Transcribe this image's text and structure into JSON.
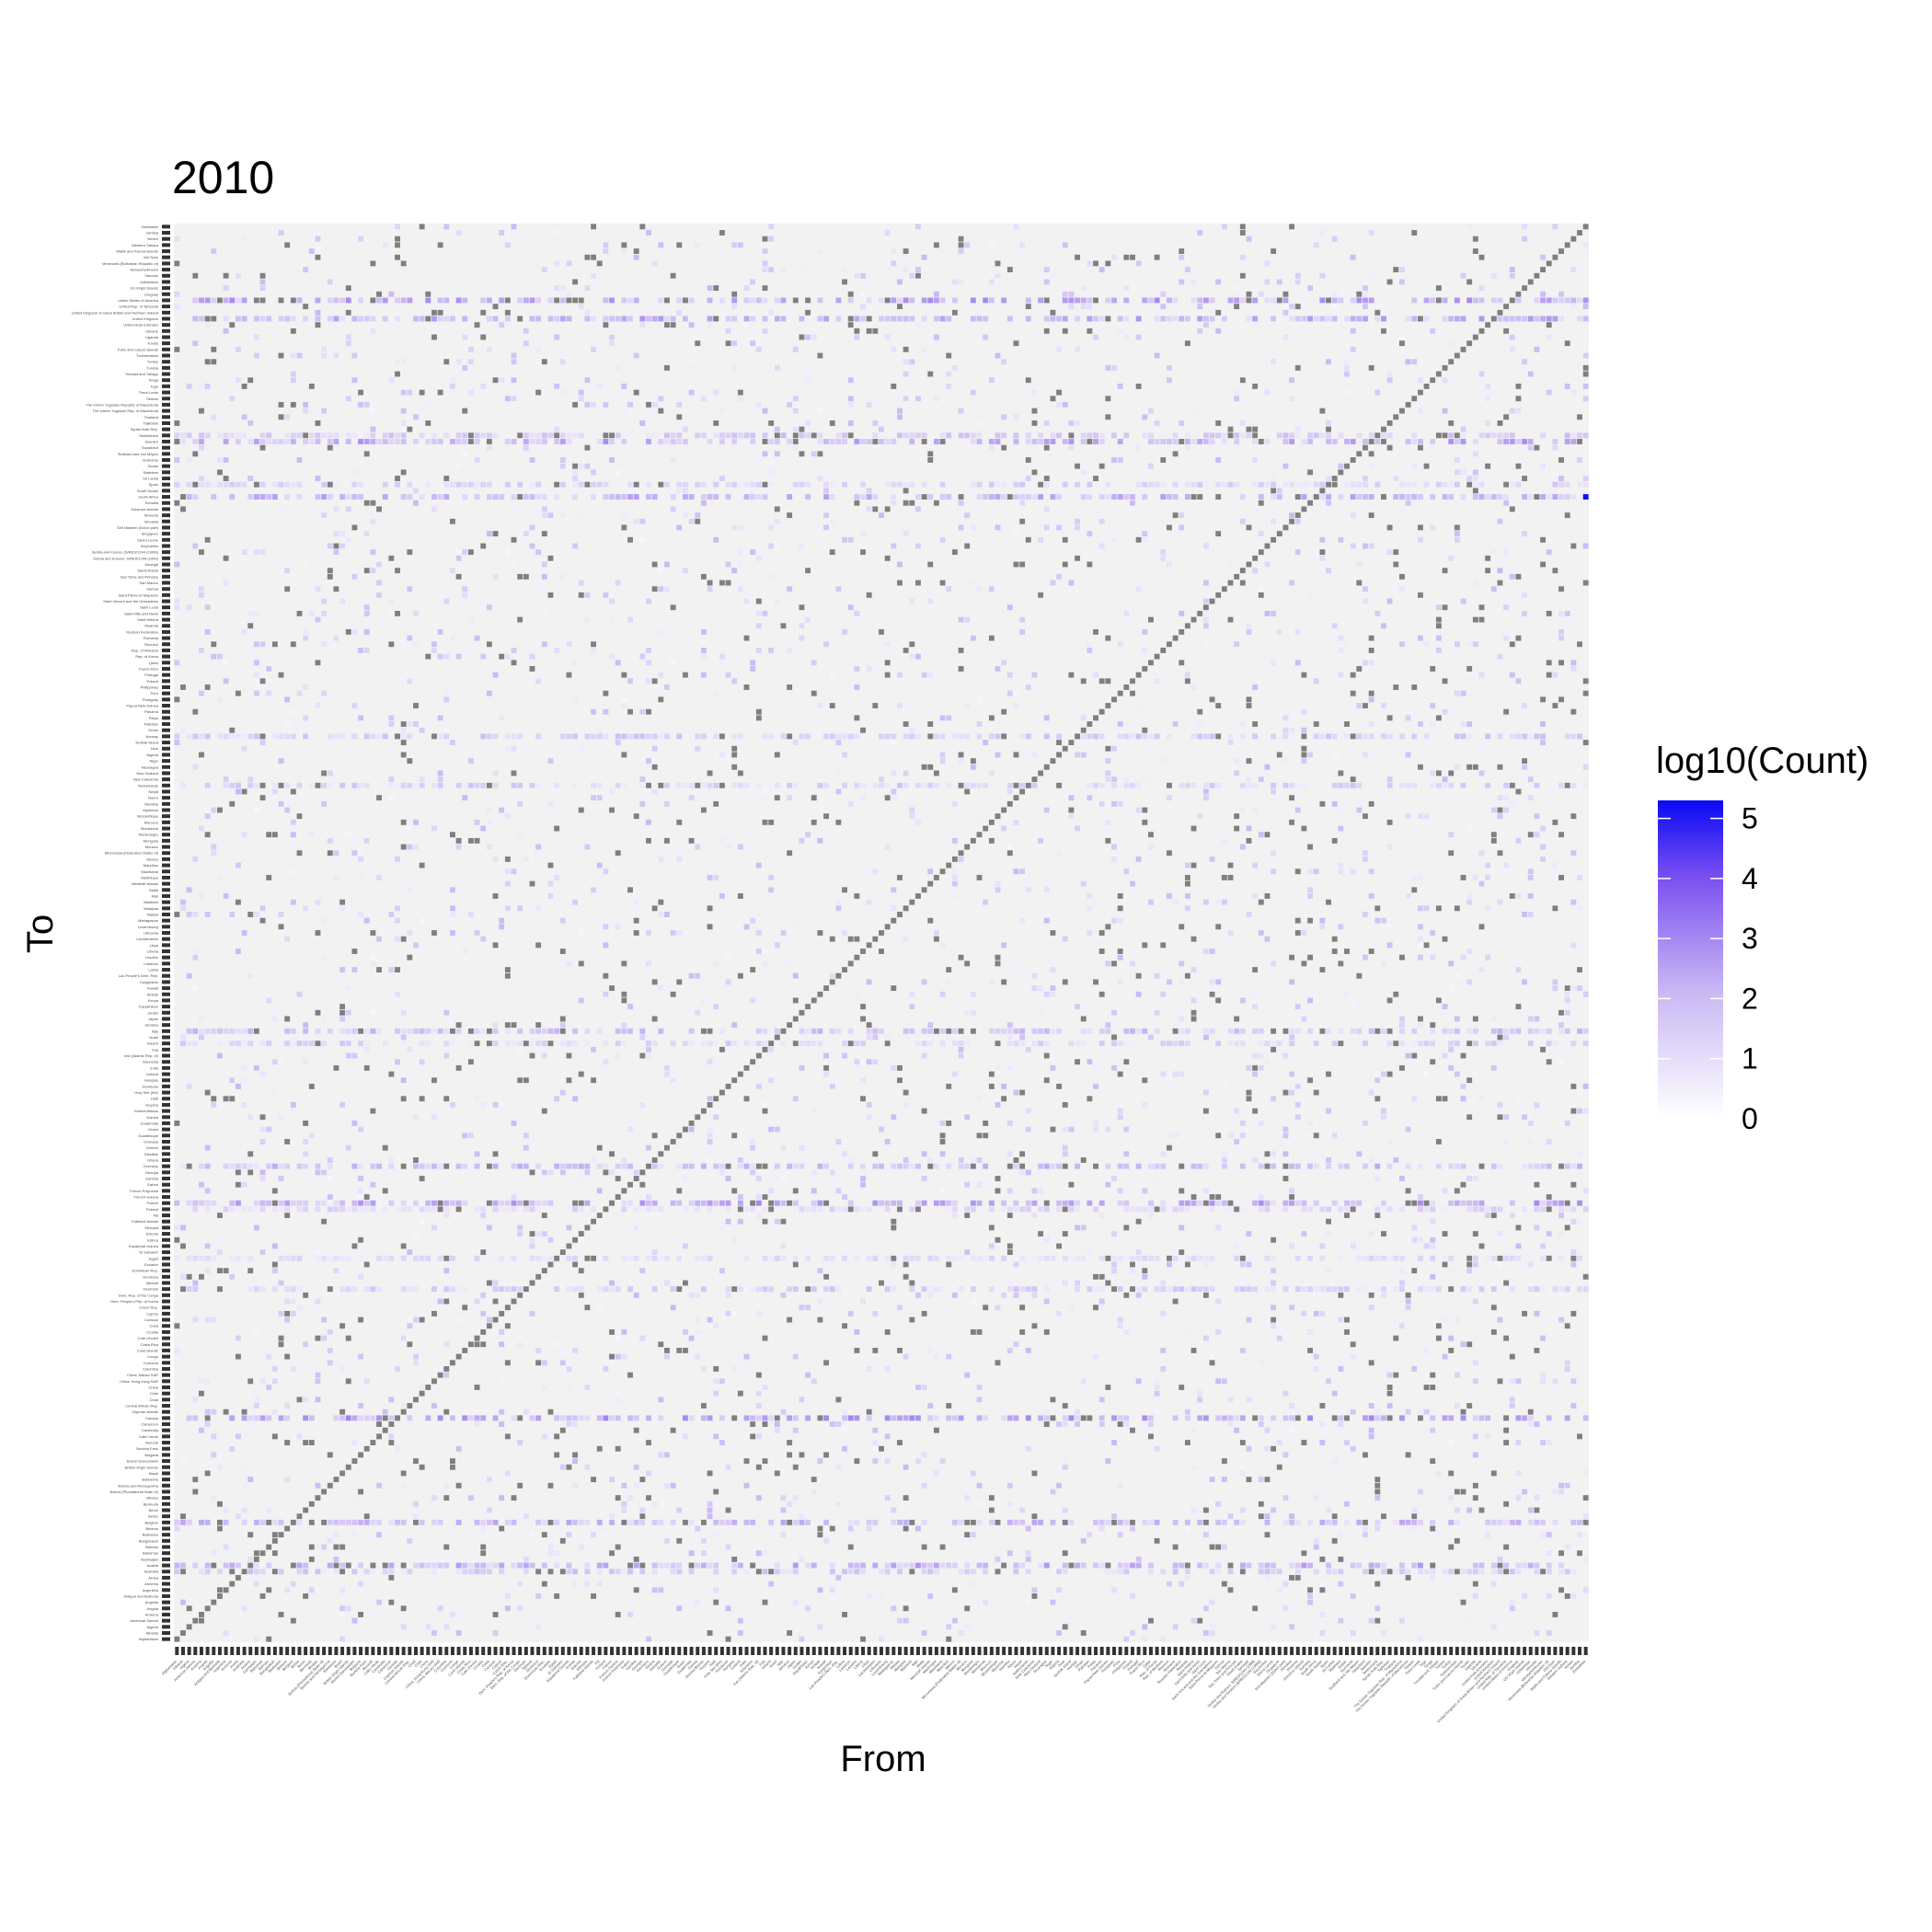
{
  "chart_data": {
    "type": "heatmap",
    "title": "2010",
    "xlabel": "From",
    "ylabel": "To",
    "legend": {
      "title": "log10(Count)",
      "ticks": [
        "0",
        "1",
        "2",
        "3",
        "4",
        "5"
      ],
      "range": [
        0,
        5.3
      ],
      "low_color": "#ffffff",
      "high_color": "#0000ff",
      "na_color": "#7f7f7f",
      "empty_color": "#f2f2f2",
      "placement": "right"
    },
    "countries": [
      "Afghanistan",
      "Albania",
      "Algeria",
      "American Samoa",
      "Andorra",
      "Angola",
      "Anguilla",
      "Antigua and Barbuda",
      "Argentina",
      "Armenia",
      "Aruba",
      "Australia",
      "Austria",
      "Azerbaijan",
      "Bahamas",
      "Bahrain",
      "Bangladesh",
      "Barbados",
      "Belarus",
      "Belgium",
      "Belize",
      "Benin",
      "Bermuda",
      "Bhutan",
      "Bolivia (Plurinational State of)",
      "Bosnia and Herzegovina",
      "Botswana",
      "Brazil",
      "British Virgin Islands",
      "Brunei Darussalam",
      "Bulgaria",
      "Burkina Faso",
      "Burundi",
      "Cabo Verde",
      "Cambodia",
      "Cameroon",
      "Canada",
      "Cayman Islands",
      "Central African Rep.",
      "Chad",
      "Chile",
      "China",
      "China, Hong Kong SAR",
      "China, Macao SAR",
      "Colombia",
      "Comoros",
      "Congo",
      "Cook Islands",
      "Costa Rica",
      "Cote d'Ivoire",
      "Croatia",
      "Cuba",
      "Curacao",
      "Cyprus",
      "Czech Rep.",
      "Dem. People's Rep. of Korea",
      "Dem. Rep. of the Congo",
      "Denmark",
      "Djibouti",
      "Dominica",
      "Dominican Rep.",
      "Ecuador",
      "Egypt",
      "El Salvador",
      "Equatorial Guinea",
      "Eritrea",
      "Estonia",
      "Ethiopia",
      "Falkland Islands",
      "Fiji",
      "Finland",
      "France",
      "French Guiana",
      "French Polynesia",
      "Gabon",
      "Gambia",
      "Georgia",
      "Germany",
      "Ghana",
      "Gibraltar",
      "Greece",
      "Grenada",
      "Guadeloupe",
      "Guam",
      "Guatemala",
      "Guinea",
      "Guinea-Bissau",
      "Guyana",
      "Haiti",
      "Holy See (the)",
      "Honduras",
      "Hungary",
      "Iceland",
      "India",
      "Indonesia",
      "Iran (Islamic Rep. of)",
      "Iraq",
      "Ireland",
      "Israel",
      "Italy",
      "Jamaica",
      "Japan",
      "Jordan",
      "Kazakhstan",
      "Kenya",
      "Kiribati",
      "Kuwait",
      "Kyrgyzstan",
      "Lao People's Dem. Rep.",
      "Latvia",
      "Lebanon",
      "Lesotho",
      "Liberia",
      "Libya",
      "Liechtenstein",
      "Lithuania",
      "Luxembourg",
      "Madagascar",
      "Malawi",
      "Malaysia",
      "Maldives",
      "Mali",
      "Malta",
      "Marshall Islands",
      "Martinique",
      "Mauritania",
      "Mauritius",
      "Mexico",
      "Micronesia (Federated States of)",
      "Monaco",
      "Mongolia",
      "Montenegro",
      "Montserrat",
      "Morocco",
      "Mozambique",
      "Myanmar",
      "Namibia",
      "Nauru",
      "Nepal",
      "Netherlands",
      "New Caledonia",
      "New Zealand",
      "Nicaragua",
      "Niger",
      "Nigeria",
      "Niue",
      "Norfolk Island",
      "Norway",
      "Oman",
      "Pakistan",
      "Palau",
      "Panama",
      "Papua New Guinea",
      "Paraguay",
      "Peru",
      "Philippines",
      "Poland",
      "Portugal",
      "Puerto Rico",
      "Qatar",
      "Rep. of Korea",
      "Rep. of Moldova",
      "Reunion",
      "Romania",
      "Russian Federation",
      "Rwanda",
      "Saint Helena",
      "Saint Kitts and Nevis",
      "Saint Lucia",
      "Saint Vincent and the Grenadines",
      "Saint-Pierre-et-Miquelon",
      "Samoa",
      "San Marino",
      "Sao Tome and Principe",
      "Saudi Arabia",
      "Senegal",
      "Serbia and Kosovo: S/RES/1244 (1999)",
      "Serbia and Kosovo (S/RES/1244 (1999))",
      "Seychelles",
      "Sierra Leone",
      "Singapore",
      "Sint Maarten (Dutch part)",
      "Slovakia",
      "Slovenia",
      "Solomon Islands",
      "Somalia",
      "South Africa",
      "South Sudan",
      "Spain",
      "Sri Lanka",
      "Stateless",
      "Sudan",
      "Suriname",
      "Svalbard and Jan Mayen",
      "Swaziland",
      "Sweden",
      "Switzerland",
      "Syrian Arab Rep.",
      "Tajikistan",
      "Thailand",
      "The former Yugoslav Rep. of Macedonia",
      "The former Yugoslav Republic of Macedonia",
      "Tibetan",
      "Timor-Leste",
      "Togo",
      "Tonga",
      "Trinidad and Tobago",
      "Tunisia",
      "Turkey",
      "Turkmenistan",
      "Turks and Caicos Islands",
      "Tuvalu",
      "Uganda",
      "Ukraine",
      "United Arab Emirates",
      "United Kingdom",
      "United Kingdom of Great Britain and Northern Ireland",
      "United Rep. of Tanzania",
      "United States of America",
      "Uruguay",
      "US Virgin Islands",
      "Uzbekistan",
      "Vanuatu",
      "Various/Unknown",
      "Venezuela (Bolivarian Republic of)",
      "Viet Nam",
      "Wallis and Futuna Islands",
      "Western Sahara",
      "Yemen",
      "Zambia",
      "Zimbabwe"
    ],
    "colored_rows": {
      "Austria": 2.3,
      "Belgium": 2.1,
      "Canada": 2.6,
      "France": 2.5,
      "Germany": 2.0,
      "Italy": 1.9,
      "Netherlands": 1.5,
      "Norway": 1.6,
      "South Africa": 2.2,
      "Sweden": 2.4,
      "Switzerland": 1.7,
      "United Kingdom": 2.3,
      "United States of America": 2.5,
      "Ireland": 1.4,
      "Denmark": 1.5,
      "Australia": 1.6,
      "Finland": 1.3,
      "Egypt": 1.2,
      "Spain": 1.4
    },
    "diagonal": "NA",
    "max_cell": {
      "from": "Zimbabwe",
      "to": "South Africa",
      "value": 5.2
    }
  }
}
